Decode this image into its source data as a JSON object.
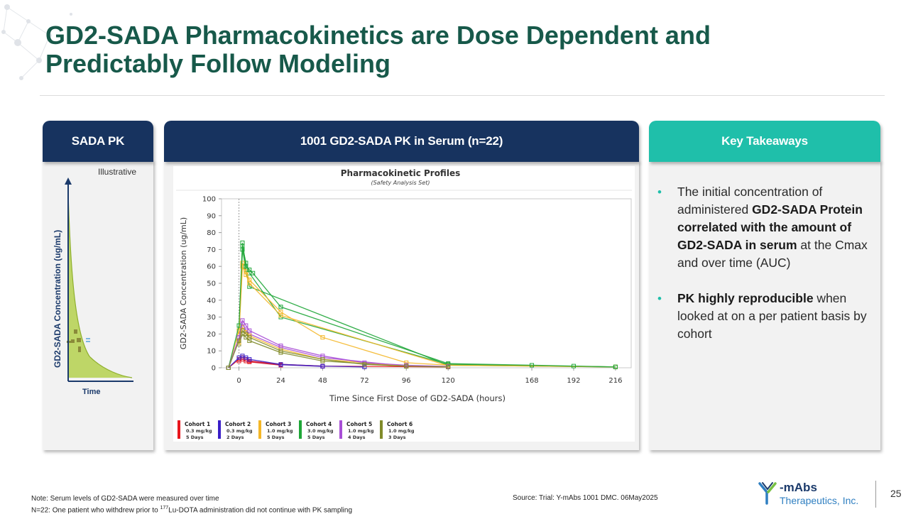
{
  "title": "GD2-SADA Pharmacokinetics are Dose Dependent and Predictably Follow Modeling",
  "panels": {
    "left": {
      "header": "SADA PK",
      "illustrative": "Illustrative",
      "y_label": "GD2-SADA Concentration (ug/mL)",
      "x_label": "Time"
    },
    "middle": {
      "header": "1001 GD2-SADA PK in Serum (n=22)"
    },
    "right": {
      "header": "Key Takeaways",
      "bullets": [
        {
          "pre": "The initial concentration of administered ",
          "bold": "GD2-SADA Protein correlated with the amount of GD2-SADA in serum",
          "post": " at the Cmax and over time (AUC)"
        },
        {
          "pre": "",
          "bold": "PK highly reproducible",
          "post": " when looked at on a per patient basis by cohort"
        }
      ]
    }
  },
  "chart_data": {
    "type": "line",
    "title": "Pharmacokinetic Profiles",
    "subtitle": "(Safety Analysis Set)",
    "xlabel": "Time Since First Dose of GD2-SADA (hours)",
    "ylabel": "GD2-SADA Concentration (ug/mL)",
    "xlim": [
      -10,
      225
    ],
    "ylim": [
      0,
      100
    ],
    "x_ticks": [
      0,
      24,
      48,
      72,
      96,
      120,
      168,
      192,
      216
    ],
    "y_ticks": [
      0,
      10,
      20,
      30,
      40,
      50,
      60,
      70,
      80,
      90,
      100
    ],
    "series": [
      {
        "name": "Cohort 1",
        "dose": "0.3 mg/kg",
        "days": "5 Days",
        "color": "#e8161d",
        "x": [
          -6,
          0,
          2,
          4,
          6,
          24,
          48,
          120
        ],
        "y": [
          0,
          5,
          6,
          5,
          4,
          2,
          1,
          0.5
        ]
      },
      {
        "name": "Cohort 2",
        "dose": "0.3 mg/kg",
        "days": "2 Days",
        "color": "#3a1fc8",
        "x": [
          -6,
          0,
          2,
          4,
          6,
          24,
          48,
          72
        ],
        "y": [
          0,
          6,
          7,
          6,
          5,
          2,
          1,
          0.5
        ]
      },
      {
        "name": "Cohort 3",
        "dose": "1.0 mg/kg",
        "days": "5 Days",
        "color": "#f4b728",
        "x": [
          -6,
          0,
          2,
          4,
          6,
          24,
          48,
          96,
          120,
          216
        ],
        "y": [
          0,
          22,
          62,
          57,
          52,
          33,
          18,
          3,
          1.5,
          0.5
        ]
      },
      {
        "name": "Cohort 4",
        "dose": "3.0 mg/kg",
        "days": "5 Days",
        "color": "#1fa638",
        "x": [
          -6,
          0,
          2,
          4,
          6,
          8,
          24,
          120,
          168,
          192,
          216
        ],
        "y": [
          0,
          25,
          74,
          60,
          58,
          56,
          36,
          2.5,
          1.5,
          1,
          0.5
        ]
      },
      {
        "name": "Cohort 5",
        "dose": "1.0 mg/kg",
        "days": "4 Days",
        "color": "#a84fd6",
        "x": [
          -6,
          0,
          2,
          4,
          6,
          24,
          48,
          72,
          96,
          120
        ],
        "y": [
          0,
          18,
          28,
          25,
          22,
          13,
          7,
          3,
          1.5,
          0.8
        ]
      },
      {
        "name": "Cohort 6",
        "dose": "1.0 mg/kg",
        "days": "3 Days",
        "color": "#808b2a",
        "x": [
          -6,
          0,
          2,
          4,
          6,
          24,
          48,
          72,
          96,
          120
        ],
        "y": [
          0,
          16,
          22,
          20,
          18,
          10,
          5,
          2,
          1,
          0.5
        ]
      }
    ],
    "extra_lines": [
      {
        "color": "#1fa638",
        "x": [
          0,
          2,
          4,
          6,
          24,
          120,
          216
        ],
        "y": [
          22,
          72,
          62,
          56,
          30,
          2,
          0.5
        ]
      },
      {
        "color": "#1fa638",
        "x": [
          0,
          2,
          4,
          6,
          120,
          216
        ],
        "y": [
          20,
          70,
          58,
          48,
          1.5,
          0.5
        ]
      },
      {
        "color": "#f4b728",
        "x": [
          0,
          2,
          4,
          6,
          24,
          120
        ],
        "y": [
          20,
          60,
          55,
          50,
          31,
          1.2
        ]
      },
      {
        "color": "#a84fd6",
        "x": [
          0,
          2,
          4,
          6,
          24,
          48,
          96
        ],
        "y": [
          16,
          26,
          22,
          20,
          12,
          6,
          1
        ]
      },
      {
        "color": "#808b2a",
        "x": [
          0,
          2,
          4,
          6,
          24,
          48,
          96
        ],
        "y": [
          14,
          20,
          18,
          16,
          9,
          4,
          0.8
        ]
      },
      {
        "color": "#f4b728",
        "x": [
          0,
          2,
          4,
          6,
          24,
          48,
          96
        ],
        "y": [
          15,
          24,
          21,
          19,
          11,
          5,
          1
        ]
      },
      {
        "color": "#e8161d",
        "x": [
          0,
          2,
          4,
          6,
          24
        ],
        "y": [
          4,
          5,
          4,
          3.5,
          1.5
        ]
      },
      {
        "color": "#3a1fc8",
        "x": [
          0,
          2,
          4,
          6,
          24,
          48
        ],
        "y": [
          5,
          6,
          5,
          4,
          1.8,
          0.8
        ]
      }
    ]
  },
  "footer": {
    "note_line1": "Note: Serum levels of GD2-SADA were measured over time",
    "note_line2_pre": "N=22: One patient who withdrew prior to ",
    "note_sup": "177",
    "note_line2_post": "Lu-DOTA administration did not continue with PK sampling",
    "source": "Source: Trial: Y-mAbs 1001 DMC. 06May2025",
    "logo_brand": "-mAbs",
    "logo_sub": "Therapeutics, Inc.",
    "page_number": "25"
  }
}
